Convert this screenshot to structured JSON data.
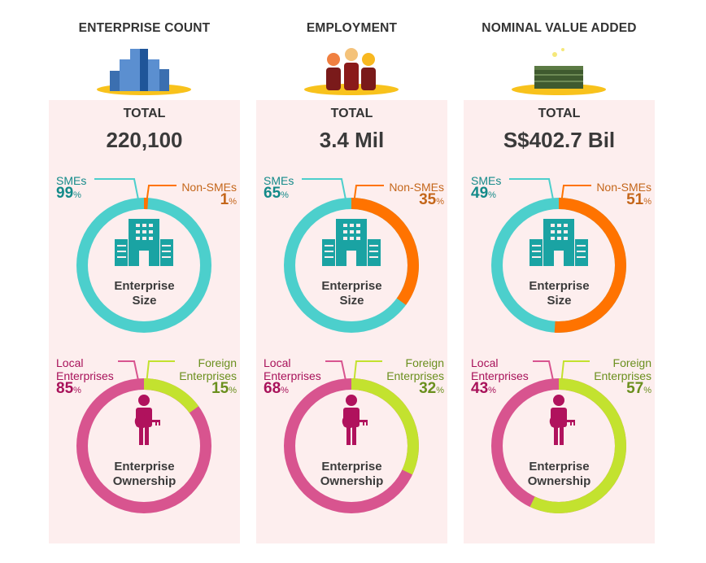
{
  "colors": {
    "sme": "#4ccfcc",
    "non_sme": "#ff7300",
    "local": "#d8548f",
    "foreign": "#c3e22f",
    "sme_text": "#138a89",
    "non_sme_text": "#c4661a",
    "local_text": "#a8125a",
    "foreign_text": "#6a8f1d",
    "panel_bg": "#fdeeee"
  },
  "total_label": "TOTAL",
  "percent_sign": "%",
  "size_chart_title": [
    "Enterprise",
    "Size"
  ],
  "ownership_chart_title": [
    "Enterprise",
    "Ownership"
  ],
  "labels": {
    "sme": "SMEs",
    "non_sme": "Non-SMEs",
    "local": [
      "Local",
      "Enterprises"
    ],
    "foreign": [
      "Foreign",
      "Enterprises"
    ]
  },
  "chart_data": [
    {
      "type": "pie",
      "title": "ENTERPRISE COUNT",
      "total": "220,100",
      "icon": "buildings-icon",
      "size": {
        "SMEs": 99,
        "Non-SMEs": 1
      },
      "ownership": {
        "Local Enterprises": 85,
        "Foreign Enterprises": 15
      }
    },
    {
      "type": "pie",
      "title": "EMPLOYMENT",
      "total": "3.4 Mil",
      "icon": "workers-icon",
      "size": {
        "SMEs": 65,
        "Non-SMEs": 35
      },
      "ownership": {
        "Local Enterprises": 68,
        "Foreign Enterprises": 32
      }
    },
    {
      "type": "pie",
      "title": "NOMINAL VALUE ADDED",
      "total": "S$402.7 Bil",
      "icon": "money-stack-icon",
      "size": {
        "SMEs": 49,
        "Non-SMEs": 51
      },
      "ownership": {
        "Local Enterprises": 43,
        "Foreign Enterprises": 57
      }
    }
  ]
}
